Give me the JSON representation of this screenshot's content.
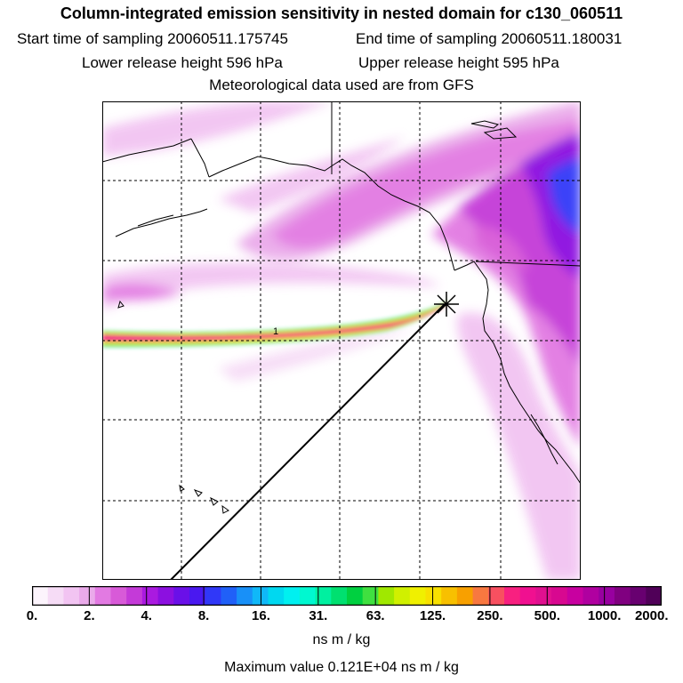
{
  "title": "Column-integrated emission sensitivity in nested domain for c130_060511",
  "header": {
    "start_time": "Start time of sampling 20060511.175745",
    "end_time": "End time of sampling 20060511.180031",
    "lower_height": "Lower release height  596 hPa",
    "upper_height": "Upper release height  595 hPa",
    "met_data": "Meteorological data used are from GFS"
  },
  "map": {
    "markers": [
      {
        "name": "release-point",
        "symbol": "star"
      },
      {
        "name": "plume-label",
        "text": "1"
      }
    ]
  },
  "colorbar": {
    "ticks": [
      "0.",
      "2.",
      "4.",
      "8.",
      "16.",
      "31.",
      "63.",
      "125.",
      "250.",
      "500.",
      "1000.",
      "2000."
    ],
    "colors": [
      "#fcf4fc",
      "#f6dcf6",
      "#f2c4f2",
      "#eaaaea",
      "#e27ae2",
      "#d85ad8",
      "#c43ad8",
      "#aa1ae0",
      "#8c10e0",
      "#6a10e8",
      "#4a18f0",
      "#3038f8",
      "#2060f8",
      "#1890f8",
      "#10b8f8",
      "#00d8f0",
      "#00f0f0",
      "#00f8d0",
      "#00f0a0",
      "#00e070",
      "#00d040",
      "#40e040",
      "#a0e800",
      "#d0f000",
      "#f0f000",
      "#f8e000",
      "#f8c000",
      "#f8a000",
      "#f87840",
      "#f85060",
      "#f82080",
      "#f01090",
      "#e01090",
      "#d80890",
      "#c800a0",
      "#b000a0",
      "#9800a0",
      "#800080",
      "#680070",
      "#500058"
    ],
    "unit": "ns m / kg"
  },
  "max_value": "Maximum value  0.121E+04 ns m / kg"
}
